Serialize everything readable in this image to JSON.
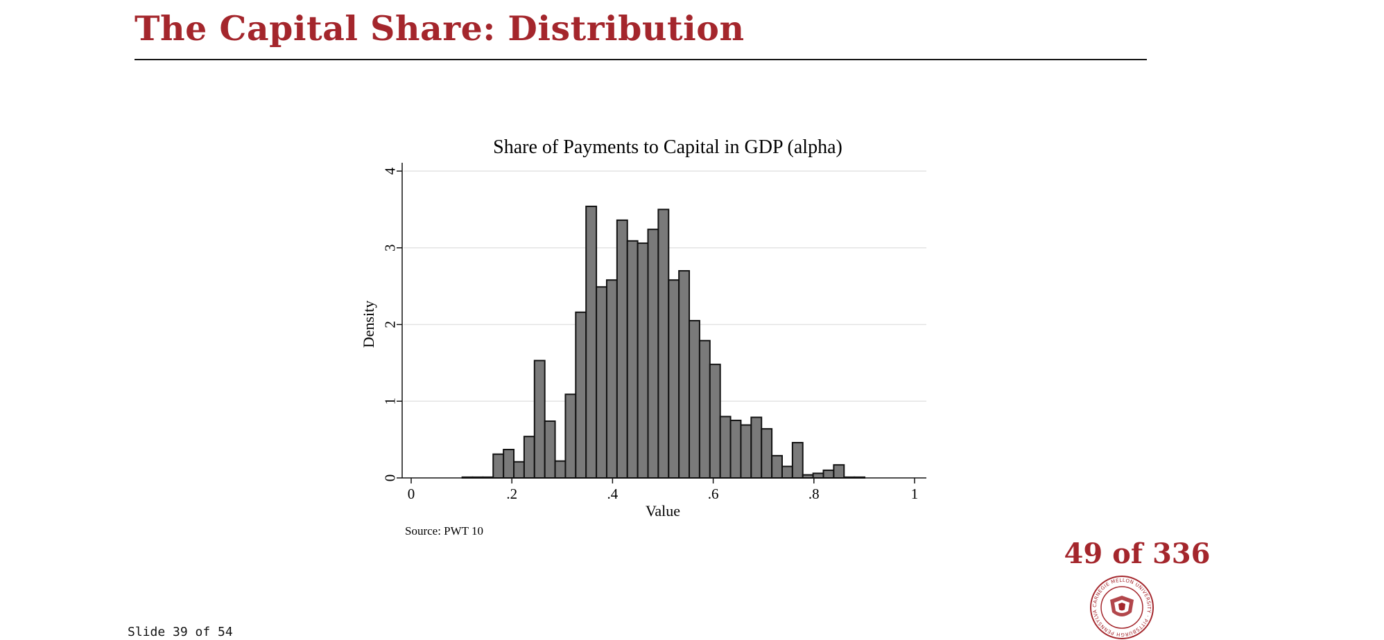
{
  "slide": {
    "title": "The Capital Share: Distribution",
    "counter": "49 of 336",
    "slide_number": "Slide 39 of 54"
  },
  "colors": {
    "accent": "#a4262c",
    "bar_fill": "#7a7a7a",
    "bar_stroke": "#111111",
    "gridline": "#e3e3e3"
  },
  "icons": {
    "seal": "carnegie-mellon-university-seal"
  },
  "seal_text": "CARNEGIE MELLON UNIVERSITY · PITTSBURGH PENNSYLVANIA 1900",
  "chart_data": {
    "type": "bar",
    "title": "Share of Payments to Capital in GDP (alpha)",
    "xlabel": "Value",
    "ylabel": "Density",
    "xlim": [
      0,
      1
    ],
    "ylim": [
      0,
      4
    ],
    "xticks": [
      0,
      0.2,
      0.4,
      0.6,
      0.8,
      1
    ],
    "xtick_labels": [
      "0",
      ".2",
      ".4",
      ".6",
      ".8",
      "1"
    ],
    "yticks": [
      0,
      1,
      2,
      3,
      4
    ],
    "ytick_labels": [
      "0",
      "1",
      "2",
      "3",
      "4"
    ],
    "grid": true,
    "legend": "none",
    "note": "Source: PWT 10",
    "bin_width": 0.0205,
    "bin_start": 0.1014,
    "values": [
      0.01,
      0.01,
      0.01,
      0.31,
      0.37,
      0.21,
      0.54,
      1.53,
      0.74,
      0.22,
      1.09,
      2.16,
      3.54,
      2.49,
      2.58,
      3.36,
      3.09,
      3.06,
      3.24,
      3.5,
      2.58,
      2.7,
      2.05,
      1.79,
      1.48,
      0.8,
      0.75,
      0.69,
      0.79,
      0.64,
      0.29,
      0.15,
      0.46,
      0.04,
      0.06,
      0.1,
      0.17,
      0.01,
      0.01
    ]
  }
}
